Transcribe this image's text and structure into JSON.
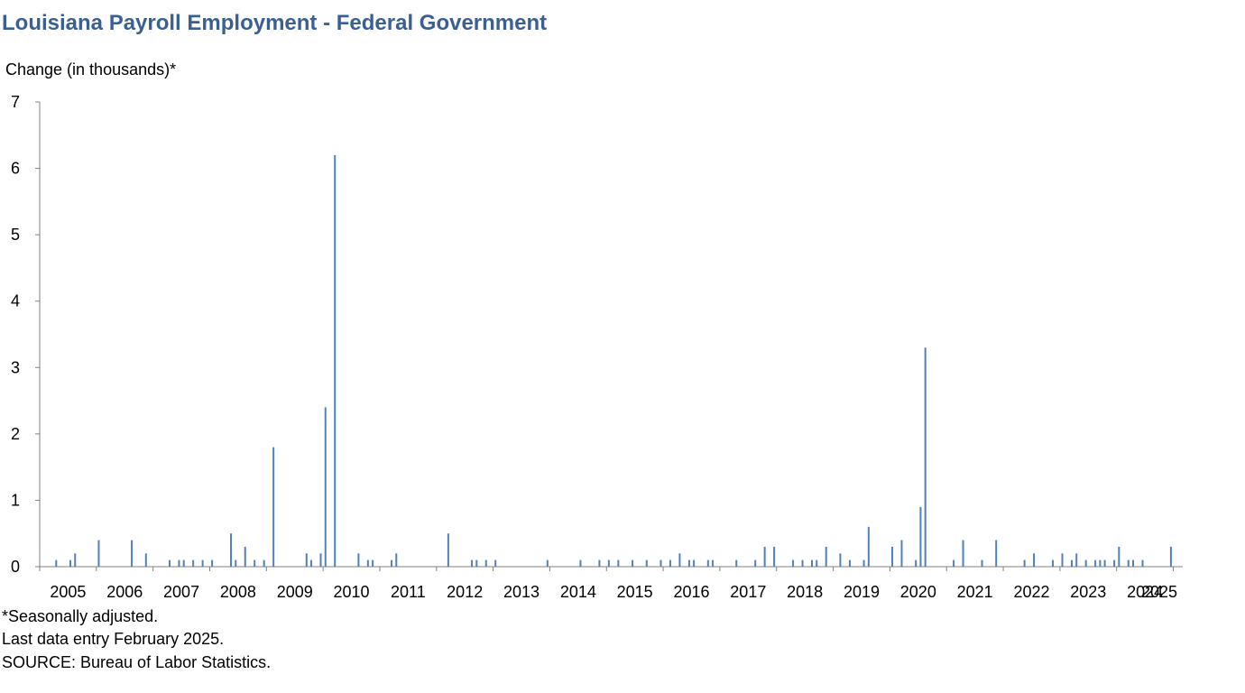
{
  "header": {
    "title": "Louisiana Payroll Employment - Federal Government"
  },
  "footnotes": [
    "*Seasonally adjusted.",
    "Last data entry February 2025.",
    "SOURCE: Bureau of Labor Statistics."
  ],
  "colors": {
    "bar": "#4f81bd",
    "title": "#3a5f93",
    "axis": "#808080"
  },
  "chart_data": {
    "type": "bar",
    "title": "Louisiana Payroll Employment - Federal Government",
    "ylabel": "Change (in thousands)*",
    "xlabel": "",
    "ylim": [
      0,
      7
    ],
    "yticks": [
      0,
      1,
      2,
      3,
      4,
      5,
      6,
      7
    ],
    "xlim": [
      "2005-01",
      "2025-02"
    ],
    "x_tick_labels": [
      "2005",
      "2006",
      "2007",
      "2008",
      "2009",
      "2010",
      "2011",
      "2012",
      "2013",
      "2014",
      "2015",
      "2016",
      "2017",
      "2018",
      "2019",
      "2020",
      "2021",
      "2022",
      "2023",
      "2024",
      "2025"
    ],
    "grid": false,
    "legend": "none",
    "points": [
      {
        "x": "2005-04",
        "y": 0.1
      },
      {
        "x": "2005-07",
        "y": 0.1
      },
      {
        "x": "2005-08",
        "y": 0.2
      },
      {
        "x": "2006-01",
        "y": 0.4
      },
      {
        "x": "2006-08",
        "y": 0.4
      },
      {
        "x": "2006-11",
        "y": 0.2
      },
      {
        "x": "2007-04",
        "y": 0.1
      },
      {
        "x": "2007-06",
        "y": 0.1
      },
      {
        "x": "2007-07",
        "y": 0.1
      },
      {
        "x": "2007-09",
        "y": 0.1
      },
      {
        "x": "2007-11",
        "y": 0.1
      },
      {
        "x": "2008-01",
        "y": 0.1
      },
      {
        "x": "2008-05",
        "y": 0.5
      },
      {
        "x": "2008-06",
        "y": 0.1
      },
      {
        "x": "2008-08",
        "y": 0.3
      },
      {
        "x": "2008-10",
        "y": 0.1
      },
      {
        "x": "2008-12",
        "y": 0.1
      },
      {
        "x": "2009-02",
        "y": 1.8
      },
      {
        "x": "2009-09",
        "y": 0.2
      },
      {
        "x": "2009-10",
        "y": 0.1
      },
      {
        "x": "2009-12",
        "y": 0.2
      },
      {
        "x": "2010-01",
        "y": 2.4
      },
      {
        "x": "2010-03",
        "y": 6.2
      },
      {
        "x": "2010-08",
        "y": 0.2
      },
      {
        "x": "2010-10",
        "y": 0.1
      },
      {
        "x": "2010-11",
        "y": 0.1
      },
      {
        "x": "2011-03",
        "y": 0.1
      },
      {
        "x": "2011-04",
        "y": 0.2
      },
      {
        "x": "2012-03",
        "y": 0.5
      },
      {
        "x": "2012-08",
        "y": 0.1
      },
      {
        "x": "2012-09",
        "y": 0.1
      },
      {
        "x": "2012-11",
        "y": 0.1
      },
      {
        "x": "2013-01",
        "y": 0.1
      },
      {
        "x": "2013-12",
        "y": 0.1
      },
      {
        "x": "2014-07",
        "y": 0.1
      },
      {
        "x": "2014-11",
        "y": 0.1
      },
      {
        "x": "2015-01",
        "y": 0.1
      },
      {
        "x": "2015-03",
        "y": 0.1
      },
      {
        "x": "2015-06",
        "y": 0.1
      },
      {
        "x": "2015-09",
        "y": 0.1
      },
      {
        "x": "2015-12",
        "y": 0.1
      },
      {
        "x": "2016-02",
        "y": 0.1
      },
      {
        "x": "2016-04",
        "y": 0.2
      },
      {
        "x": "2016-06",
        "y": 0.1
      },
      {
        "x": "2016-07",
        "y": 0.1
      },
      {
        "x": "2016-10",
        "y": 0.1
      },
      {
        "x": "2016-11",
        "y": 0.1
      },
      {
        "x": "2017-04",
        "y": 0.1
      },
      {
        "x": "2017-08",
        "y": 0.1
      },
      {
        "x": "2017-10",
        "y": 0.3
      },
      {
        "x": "2017-12",
        "y": 0.3
      },
      {
        "x": "2018-04",
        "y": 0.1
      },
      {
        "x": "2018-06",
        "y": 0.1
      },
      {
        "x": "2018-08",
        "y": 0.1
      },
      {
        "x": "2018-09",
        "y": 0.1
      },
      {
        "x": "2018-11",
        "y": 0.3
      },
      {
        "x": "2019-02",
        "y": 0.2
      },
      {
        "x": "2019-04",
        "y": 0.1
      },
      {
        "x": "2019-07",
        "y": 0.1
      },
      {
        "x": "2019-08",
        "y": 0.6
      },
      {
        "x": "2020-01",
        "y": 0.3
      },
      {
        "x": "2020-03",
        "y": 0.4
      },
      {
        "x": "2020-06",
        "y": 0.1
      },
      {
        "x": "2020-07",
        "y": 0.9
      },
      {
        "x": "2020-08",
        "y": 3.3
      },
      {
        "x": "2021-02",
        "y": 0.1
      },
      {
        "x": "2021-04",
        "y": 0.4
      },
      {
        "x": "2021-08",
        "y": 0.1
      },
      {
        "x": "2021-11",
        "y": 0.4
      },
      {
        "x": "2022-05",
        "y": 0.1
      },
      {
        "x": "2022-07",
        "y": 0.2
      },
      {
        "x": "2022-11",
        "y": 0.1
      },
      {
        "x": "2023-01",
        "y": 0.2
      },
      {
        "x": "2023-03",
        "y": 0.1
      },
      {
        "x": "2023-04",
        "y": 0.2
      },
      {
        "x": "2023-06",
        "y": 0.1
      },
      {
        "x": "2023-08",
        "y": 0.1
      },
      {
        "x": "2023-09",
        "y": 0.1
      },
      {
        "x": "2023-10",
        "y": 0.1
      },
      {
        "x": "2023-12",
        "y": 0.1
      },
      {
        "x": "2024-01",
        "y": 0.3
      },
      {
        "x": "2024-03",
        "y": 0.1
      },
      {
        "x": "2024-04",
        "y": 0.1
      },
      {
        "x": "2024-06",
        "y": 0.1
      },
      {
        "x": "2024-12",
        "y": 0.3
      }
    ]
  }
}
